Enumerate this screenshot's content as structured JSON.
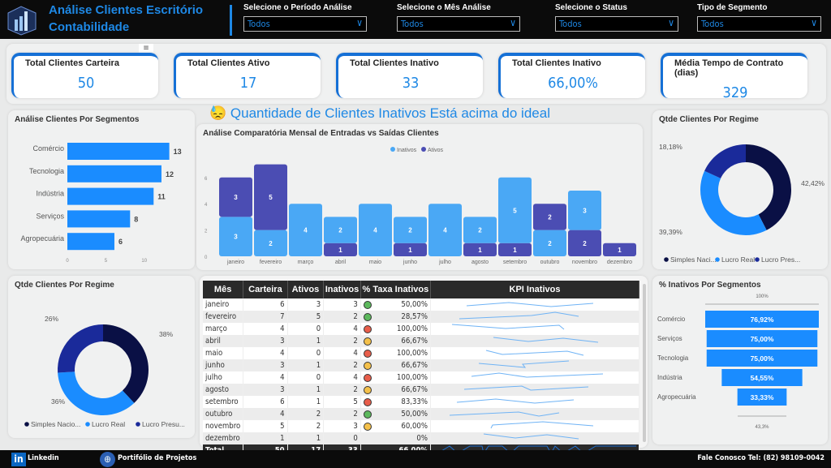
{
  "header": {
    "title_line1": "Análise Clientes Escritório",
    "title_line2": "Contabilidade",
    "filters": [
      {
        "label": "Selecione o Período Análise",
        "value": "Todos"
      },
      {
        "label": "Selecione o Mês Análise",
        "value": "Todos"
      },
      {
        "label": "Selecione o Status",
        "value": "Todos"
      },
      {
        "label": "Tipo de Segmento",
        "value": "Todos"
      }
    ]
  },
  "kpis": [
    {
      "title": "Total Clientes Carteira",
      "value": "50"
    },
    {
      "title": "Total Clientes Ativo",
      "value": "17"
    },
    {
      "title": "Total Clientes Inativo",
      "value": "33"
    },
    {
      "title": "Total Clientes Inativo",
      "value": "66,00%"
    },
    {
      "title": "Média Tempo de Contrato (dias)",
      "value": "329"
    }
  ],
  "alert": {
    "emoji": "😓",
    "text": "Quantidade de Clientes Inativos Está acima do ideal"
  },
  "colors": {
    "accent": "#1e88e5",
    "bar": "#1a8cff",
    "navy": "#0a1045",
    "mid": "#1a2a9a",
    "inativos": "#4aa8f5",
    "ativos": "#4b4db3"
  },
  "chart_data": [
    {
      "type": "bar",
      "title": "Análise Clientes Por Segmentos",
      "categories": [
        "Comércio",
        "Tecnologia",
        "Indústria",
        "Serviços",
        "Agropecuária"
      ],
      "values": [
        13,
        12,
        11,
        8,
        6
      ],
      "xticks": [
        "0",
        "5",
        "10"
      ],
      "xlim": [
        0,
        15
      ]
    },
    {
      "type": "area",
      "title": "Análise Comparatória Mensal de Entradas vs Saídas Clientes",
      "legend": [
        "Inativos",
        "Ativos"
      ],
      "categories": [
        "janeiro",
        "fevereiro",
        "março",
        "abril",
        "maio",
        "junho",
        "julho",
        "agosto",
        "setembro",
        "outubro",
        "novembro",
        "dezembro"
      ],
      "series": [
        {
          "name": "Inativos",
          "values": [
            3,
            2,
            4,
            2,
            4,
            2,
            4,
            2,
            5,
            2,
            3,
            0
          ]
        },
        {
          "name": "Ativos",
          "values": [
            3,
            5,
            0,
            1,
            0,
            1,
            0,
            1,
            1,
            2,
            2,
            1
          ]
        }
      ],
      "yticks": [
        "0",
        "2",
        "4",
        "6"
      ],
      "ylim": [
        0,
        7
      ]
    },
    {
      "type": "pie",
      "title": "Qtde Clientes Por Regime",
      "labels": [
        "Simples Naci...",
        "Lucro Real",
        "Lucro Pres..."
      ],
      "values": [
        42.42,
        39.39,
        18.18
      ],
      "data_labels": [
        "42,42%",
        "39,39%",
        "18,18%"
      ]
    },
    {
      "type": "pie",
      "title": "Qtde Clientes Por Regime",
      "labels": [
        "Simples Nacio...",
        "Lucro Real",
        "Lucro Presu..."
      ],
      "values": [
        38,
        36,
        26
      ],
      "data_labels": [
        "38%",
        "36%",
        "26%"
      ]
    },
    {
      "type": "bar",
      "title": "% Inativos Por Segmentos",
      "categories": [
        "Comércio",
        "Serviços",
        "Tecnologia",
        "Indústria",
        "Agropecuária"
      ],
      "values": [
        76.92,
        75.0,
        75.0,
        54.55,
        33.33
      ],
      "data_labels": [
        "76,92%",
        "75,00%",
        "75,00%",
        "54,55%",
        "33,33%"
      ],
      "top_label": "100%",
      "bottom_label": "43,3%"
    }
  ],
  "table": {
    "headers": [
      "Mês",
      "Carteira",
      "Ativos",
      "Inativos",
      "% Taxa Inativos",
      "KPI Inativos"
    ],
    "rows": [
      [
        "janeiro",
        "6",
        "3",
        "3",
        "green",
        "50,00%"
      ],
      [
        "fevereiro",
        "7",
        "5",
        "2",
        "green",
        "28,57%"
      ],
      [
        "março",
        "4",
        "0",
        "4",
        "red",
        "100,00%"
      ],
      [
        "abril",
        "3",
        "1",
        "2",
        "yellow",
        "66,67%"
      ],
      [
        "maio",
        "4",
        "0",
        "4",
        "red",
        "100,00%"
      ],
      [
        "junho",
        "3",
        "1",
        "2",
        "yellow",
        "66,67%"
      ],
      [
        "julho",
        "4",
        "0",
        "4",
        "red",
        "100,00%"
      ],
      [
        "agosto",
        "3",
        "1",
        "2",
        "yellow",
        "66,67%"
      ],
      [
        "setembro",
        "6",
        "1",
        "5",
        "red",
        "83,33%"
      ],
      [
        "outubro",
        "4",
        "2",
        "2",
        "green",
        "50,00%"
      ],
      [
        "novembro",
        "5",
        "2",
        "3",
        "yellow",
        "60,00%"
      ],
      [
        "dezembro",
        "1",
        "1",
        "0",
        "",
        "0%"
      ]
    ],
    "total": [
      "Total",
      "50",
      "17",
      "33",
      "66,00%"
    ]
  },
  "footer": {
    "linkedin": "Linkedin",
    "portfolio": "Portifólio de Projetos",
    "contact": "Fale Conosco Tel: (82) 98109-0042"
  }
}
